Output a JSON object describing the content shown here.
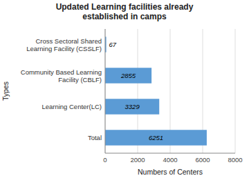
{
  "chart_data": {
    "type": "bar",
    "orientation": "horizontal",
    "title": "Updated Learning facilities already\nestablished in camps",
    "categories": [
      "Total",
      "Learning Center(LC)",
      "Community Based Learning\nFacility (CBLF)",
      "Cross Sectoral Shared\nLearning Facility (CSSLF)"
    ],
    "values": [
      6251,
      3329,
      2855,
      67
    ],
    "color": "#5b9bd5",
    "xlabel": "Numbers of Centers",
    "ylabel": "Types",
    "xlim": [
      0,
      8000
    ],
    "xticks": [
      0,
      2000,
      4000,
      6000,
      8000
    ],
    "grid": true,
    "data_labels": true
  }
}
